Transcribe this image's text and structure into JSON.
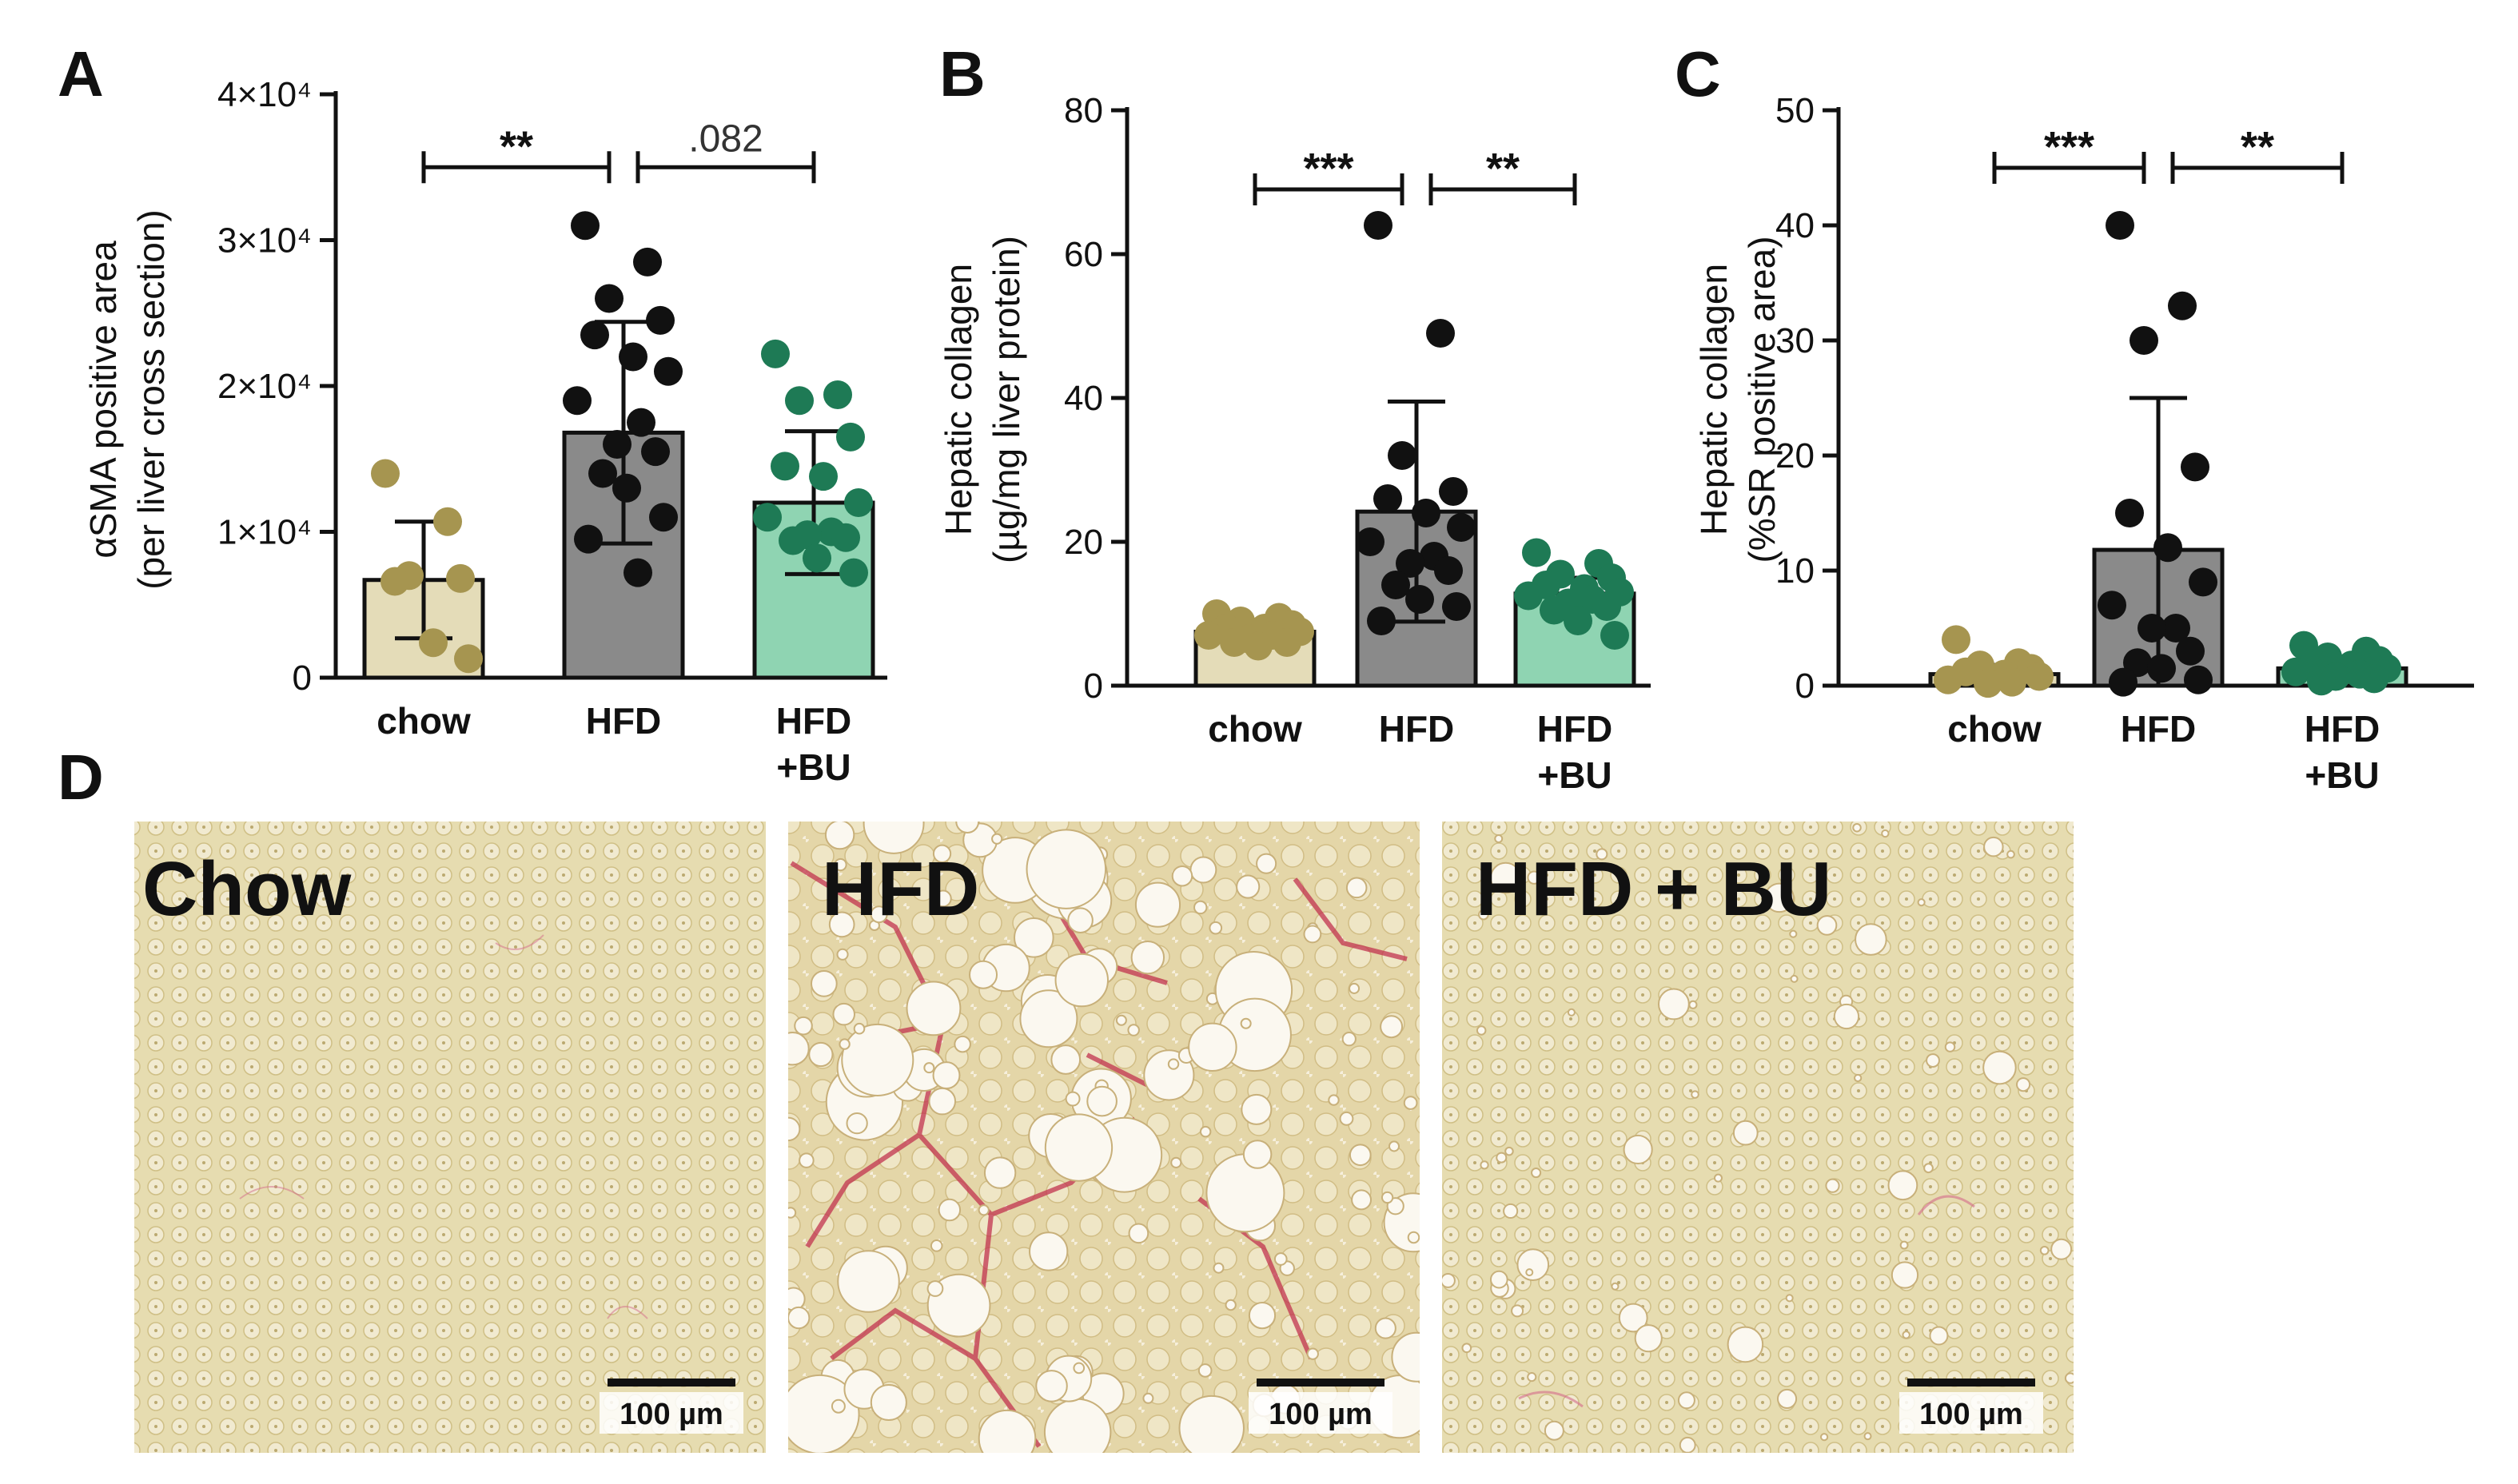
{
  "panel_letters": {
    "a": "A",
    "b": "B",
    "c": "C",
    "d": "D"
  },
  "colors": {
    "chow_fill": "#e4dcb8",
    "chow_dot": "#a69550",
    "hfd_fill": "#8a8a8a",
    "hfd_dot": "#111111",
    "bu_fill": "#8fd4b2",
    "bu_dot": "#1e7a55",
    "axis": "#111111"
  },
  "chart_data": [
    {
      "type": "bar",
      "panel": "A",
      "ylabel": [
        "αSMA positive area",
        "(per liver cross section)"
      ],
      "ylim": [
        0,
        40000
      ],
      "y_ticks": [
        0,
        10000,
        20000,
        30000,
        40000
      ],
      "y_tick_labels": [
        "0",
        "1×10⁴",
        "2×10⁴",
        "3×10⁴",
        "4×10⁴"
      ],
      "categories": [
        [
          "chow"
        ],
        [
          "HFD"
        ],
        [
          "HFD",
          "+BU"
        ]
      ],
      "series": [
        {
          "mean": 6700,
          "sd": 4000,
          "points": [
            14000,
            10700,
            7000,
            6800,
            6600,
            2400,
            1300
          ]
        },
        {
          "mean": 16800,
          "sd": 7600,
          "points": [
            31000,
            28500,
            26000,
            24500,
            23500,
            22000,
            21000,
            19000,
            17500,
            16000,
            15500,
            14000,
            13000,
            11000,
            9500,
            7200
          ]
        },
        {
          "mean": 12000,
          "sd": 4900,
          "points": [
            22200,
            19400,
            19000,
            16500,
            14500,
            13800,
            12000,
            11000,
            10000,
            9800,
            9600,
            9400,
            8200,
            7200
          ]
        }
      ],
      "significance": [
        {
          "from": 0,
          "to": 1,
          "label": "**",
          "y": 35000
        },
        {
          "from": 1,
          "to": 2,
          "label": ".082",
          "y": 35000
        }
      ]
    },
    {
      "type": "bar",
      "panel": "B",
      "ylabel": [
        "Hepatic collagen",
        "(µg/mg liver protein)"
      ],
      "ylim": [
        0,
        80
      ],
      "y_ticks": [
        0,
        20,
        40,
        60,
        80
      ],
      "y_tick_labels": [
        "0",
        "20",
        "40",
        "60",
        "80"
      ],
      "categories": [
        [
          "chow"
        ],
        [
          "HFD"
        ],
        [
          "HFD",
          "+BU"
        ]
      ],
      "series": [
        {
          "mean": 7.5,
          "sd": 1.5,
          "points": [
            10,
            9.5,
            9,
            8.5,
            8,
            8,
            7.5,
            7,
            7,
            6.5,
            6,
            6,
            5.5
          ]
        },
        {
          "mean": 24.2,
          "sd": 15.3,
          "points": [
            64,
            49,
            32,
            27,
            26,
            24,
            22,
            20,
            18,
            17,
            16,
            14,
            12,
            11,
            9
          ]
        },
        {
          "mean": 12.8,
          "sd": 2.2,
          "points": [
            18.5,
            17,
            15.5,
            15,
            14,
            13.5,
            13,
            12.5,
            12,
            11.5,
            11,
            10.5,
            9,
            7
          ]
        }
      ],
      "significance": [
        {
          "from": 0,
          "to": 1,
          "label": "***",
          "y": 69
        },
        {
          "from": 1,
          "to": 2,
          "label": "**",
          "y": 69
        }
      ]
    },
    {
      "type": "bar",
      "panel": "C",
      "ylabel": [
        "Hepatic collagen",
        "(%SR positive area)"
      ],
      "ylim": [
        0,
        50
      ],
      "y_ticks": [
        0,
        10,
        20,
        30,
        40,
        50
      ],
      "y_tick_labels": [
        "0",
        "10",
        "20",
        "30",
        "40",
        "50"
      ],
      "categories": [
        [
          "chow"
        ],
        [
          "HFD"
        ],
        [
          "HFD",
          "+BU"
        ]
      ],
      "series": [
        {
          "mean": 1.0,
          "sd": 0.8,
          "points": [
            4,
            2,
            1.8,
            1.5,
            1.2,
            1,
            0.8,
            0.5,
            0.3,
            0.2
          ]
        },
        {
          "mean": 11.8,
          "sd": 13.2,
          "points": [
            40,
            33,
            30,
            19,
            15,
            12,
            9,
            7,
            5,
            5,
            3,
            2,
            1.5,
            0.5,
            0.3
          ]
        },
        {
          "mean": 1.5,
          "sd": 0.8,
          "points": [
            3.5,
            3,
            2.5,
            2.2,
            2,
            1.8,
            1.5,
            1.2,
            1,
            0.8,
            0.6,
            0.4
          ]
        }
      ],
      "significance": [
        {
          "from": 0,
          "to": 1,
          "label": "***",
          "y": 45
        },
        {
          "from": 1,
          "to": 2,
          "label": "**",
          "y": 45
        }
      ]
    }
  ],
  "micrographs": [
    {
      "title": "Chow",
      "scale_bar": "100 µm"
    },
    {
      "title": "HFD",
      "scale_bar": "100 µm"
    },
    {
      "title": "HFD + BU",
      "scale_bar": "100 µm"
    }
  ]
}
